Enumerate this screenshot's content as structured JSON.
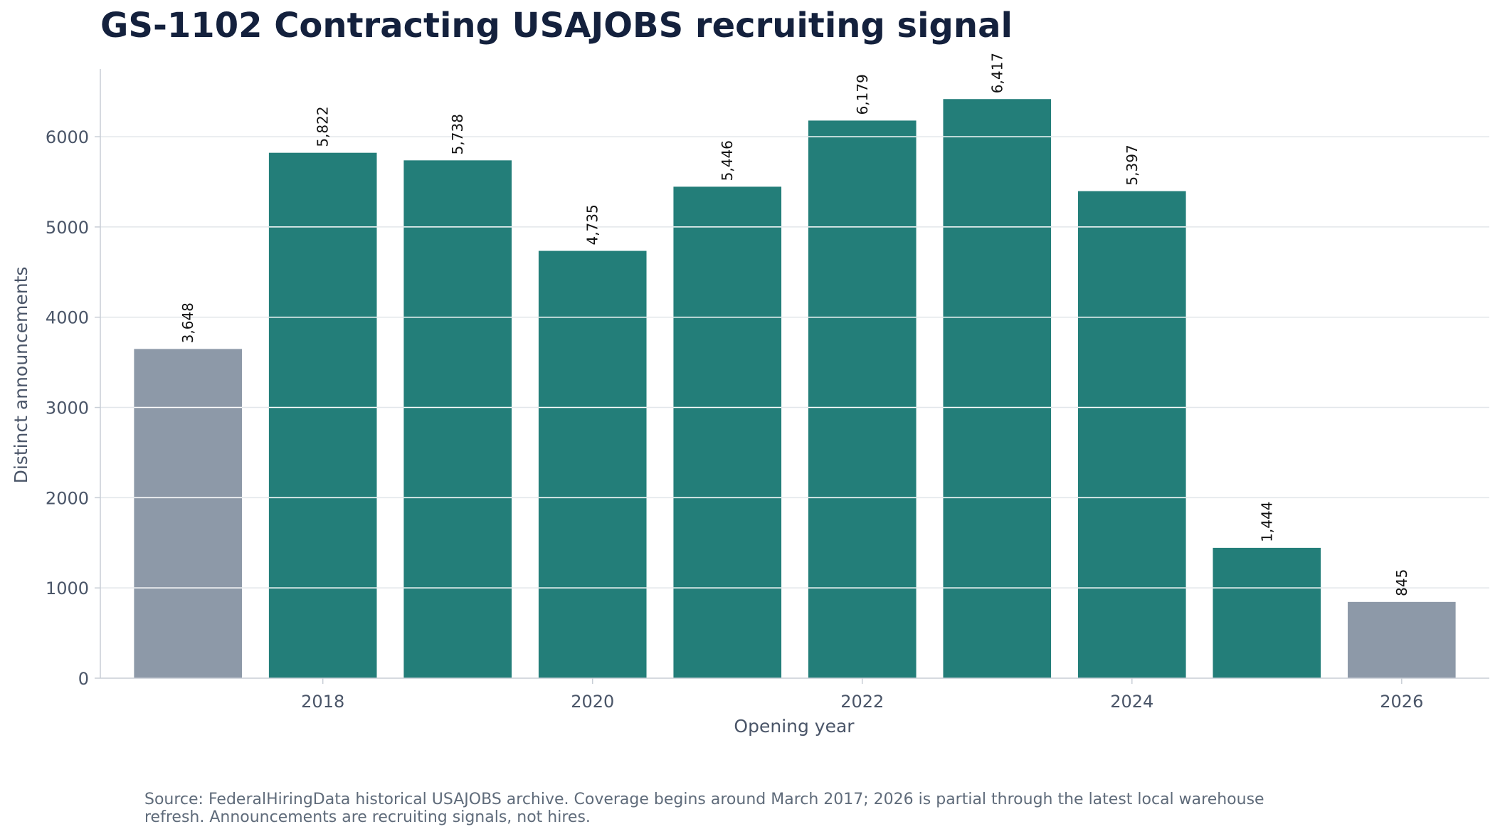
{
  "chart_data": {
    "type": "bar",
    "title": "GS-1102 Contracting USAJOBS recruiting signal",
    "xlabel": "Opening year",
    "ylabel": "Distinct announcements",
    "categories": [
      2017,
      2018,
      2019,
      2020,
      2021,
      2022,
      2023,
      2024,
      2025,
      2026
    ],
    "values": [
      3648,
      5822,
      5738,
      4735,
      5446,
      6179,
      6417,
      5397,
      1444,
      845
    ],
    "value_labels": [
      "3,648",
      "5,822",
      "5,738",
      "4,735",
      "5,446",
      "6,179",
      "6,417",
      "5,397",
      "1,444",
      "845"
    ],
    "partial_years": [
      2017,
      2026
    ],
    "x_ticks": [
      2018,
      2020,
      2022,
      2024,
      2026
    ],
    "y_ticks": [
      0,
      1000,
      2000,
      3000,
      4000,
      5000,
      6000
    ],
    "xlim": [
      2016.35,
      2026.65
    ],
    "ylim": [
      0,
      6750
    ],
    "grid": true,
    "colors": {
      "full_year": "#237e79",
      "partial_year": "#8d99a8",
      "grid": "#e2e6ea",
      "axis": "#c8ced6"
    }
  },
  "footnote": {
    "line1": "Source: FederalHiringData historical USAJOBS archive. Coverage begins around March 2017; 2026 is partial through the latest local warehouse",
    "line2": "refresh. Announcements are recruiting signals, not hires."
  }
}
